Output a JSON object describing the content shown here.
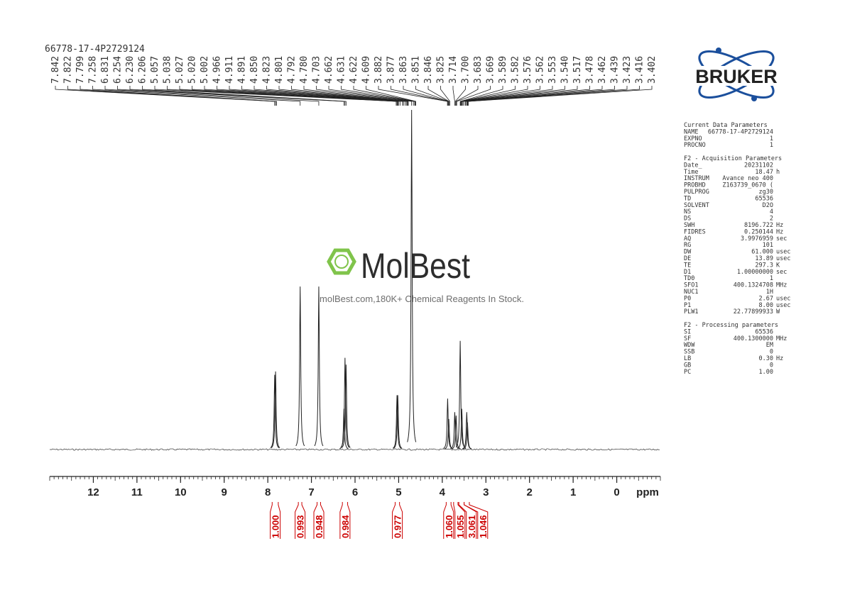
{
  "chart_data": {
    "type": "nmr",
    "title": "66778-17-4P2729124",
    "x_label": "ppm",
    "xlim": [
      13,
      -1
    ],
    "xticks": [
      12,
      11,
      10,
      9,
      8,
      7,
      6,
      5,
      4,
      3,
      2,
      1,
      0
    ],
    "peak_labels": [
      7.842,
      7.822,
      7.799,
      7.258,
      6.831,
      6.254,
      {
        "value": 6.23,
        "label": "6.230"
      },
      6.206,
      5.057,
      5.038,
      5.027,
      {
        "value": 5.02,
        "label": "5.020"
      },
      5.002,
      4.966,
      4.911,
      4.891,
      {
        "value": 4.85,
        "label": "4.850"
      },
      4.823,
      4.801,
      4.792,
      {
        "value": 4.78,
        "label": "4.780"
      },
      4.703,
      4.662,
      4.631,
      4.622,
      4.609,
      3.882,
      3.877,
      3.863,
      3.851,
      3.846,
      3.825,
      3.714,
      {
        "value": 3.7,
        "label": "3.700"
      },
      3.683,
      3.669,
      3.589,
      3.582,
      3.576,
      3.562,
      3.553,
      {
        "value": 3.54,
        "label": "3.540"
      },
      3.517,
      3.478,
      3.462,
      3.439,
      3.423,
      3.416,
      3.402
    ],
    "series": [
      {
        "name": "spectrum",
        "color": "#222222",
        "x": [
          7.842,
          7.822,
          7.258,
          6.831,
          6.254,
          6.23,
          6.206,
          5.038,
          5.02,
          4.703,
          3.877,
          3.851,
          3.714,
          3.683,
          3.589,
          3.553,
          3.439,
          3.423
        ],
        "values": [
          22,
          23,
          48,
          48,
          12,
          27,
          25,
          16,
          16,
          100,
          15,
          9,
          11,
          10,
          32,
          12,
          11,
          8
        ]
      }
    ],
    "integrals": {
      "color": "#cc0000",
      "values": [
        1,
        0.993,
        0.948,
        0.984,
        0.977,
        1.06,
        1.055,
        3.061,
        1.046
      ],
      "value_labels": [
        "1.000",
        "0.993",
        "0.948",
        "0.984",
        "0.977",
        "1.060",
        "1.055",
        "3.061",
        "1.046"
      ],
      "ranges": [
        [
          7.9,
          7.76
        ],
        [
          7.3,
          7.22
        ],
        [
          6.87,
          6.79
        ],
        [
          6.29,
          6.17
        ],
        [
          5.08,
          4.98
        ],
        [
          3.91,
          3.8
        ],
        [
          3.74,
          3.64
        ],
        [
          3.62,
          3.5
        ],
        [
          3.5,
          3.38
        ]
      ]
    }
  },
  "logo": "BRUKER",
  "watermark": {
    "brand": "MolBest",
    "tagline": "molBest.com,180K+ Chemical Reagents In Stock."
  },
  "parameters": [
    {
      "title": "Current Data Parameters",
      "rows": [
        [
          "NAME",
          "66778-17-4P2729124",
          ""
        ],
        [
          "EXPNO",
          "1",
          ""
        ],
        [
          "PROCNO",
          "1",
          ""
        ]
      ]
    },
    {
      "title": "F2 - Acquisition Parameters",
      "rows": [
        [
          "Date_",
          "20231102",
          ""
        ],
        [
          "Time",
          "18.47",
          "h"
        ],
        [
          "INSTRUM",
          "Avance neo 400",
          ""
        ],
        [
          "PROBHD",
          "Z163739_0670 (",
          ""
        ],
        [
          "PULPROG",
          "zg30",
          ""
        ],
        [
          "TD",
          "65536",
          ""
        ],
        [
          "SOLVENT",
          "D2O",
          ""
        ],
        [
          "NS",
          "4",
          ""
        ],
        [
          "DS",
          "2",
          ""
        ],
        [
          "SWH",
          "8196.722",
          "Hz"
        ],
        [
          "FIDRES",
          "0.250144",
          "Hz"
        ],
        [
          "AQ",
          "3.9976959",
          "sec"
        ],
        [
          "RG",
          "101",
          ""
        ],
        [
          "DW",
          "61.000",
          "usec"
        ],
        [
          "DE",
          "13.89",
          "usec"
        ],
        [
          "TE",
          "297.3",
          "K"
        ],
        [
          "D1",
          "1.00000000",
          "sec"
        ],
        [
          "TD0",
          "1",
          ""
        ],
        [
          "SFO1",
          "400.1324708",
          "MHz"
        ],
        [
          "NUC1",
          "1H",
          ""
        ],
        [
          "P0",
          "2.67",
          "usec"
        ],
        [
          "P1",
          "8.00",
          "usec"
        ],
        [
          "PLW1",
          "22.77899933",
          "W"
        ]
      ]
    },
    {
      "title": "F2 - Processing parameters",
      "rows": [
        [
          "SI",
          "65536",
          ""
        ],
        [
          "SF",
          "400.1300000",
          "MHz"
        ],
        [
          "WDW",
          "EM",
          ""
        ],
        [
          "SSB",
          "0",
          ""
        ],
        [
          "LB",
          "0.30",
          "Hz"
        ],
        [
          "GB",
          "0",
          ""
        ],
        [
          "PC",
          "1.00",
          ""
        ]
      ]
    }
  ]
}
